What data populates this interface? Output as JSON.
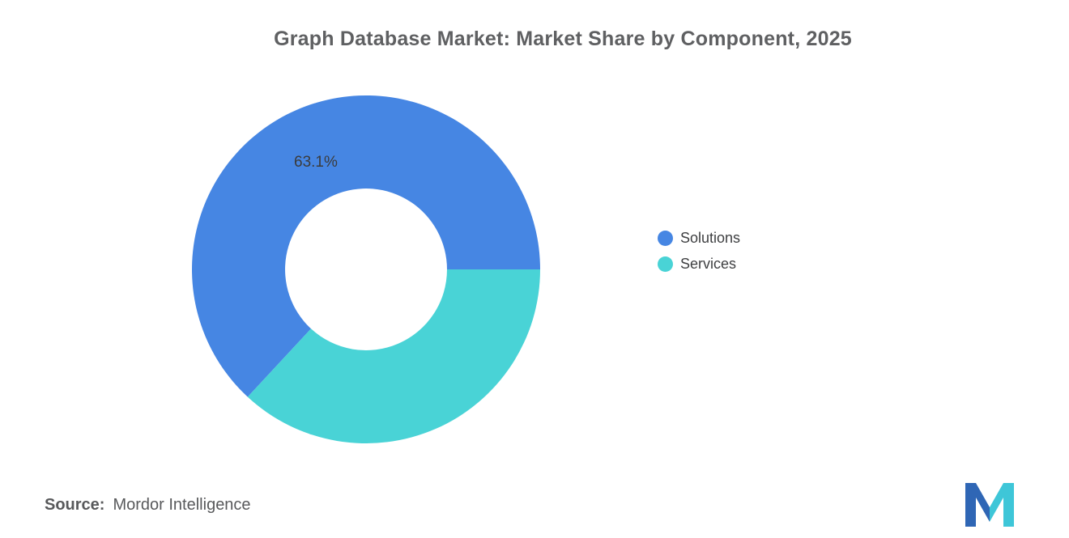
{
  "chart": {
    "title": "Graph Database Market: Market Share by Component, 2025"
  },
  "chart_data": {
    "type": "pie",
    "subtype": "donut",
    "title": "Graph Database Market: Market Share by Component, 2025",
    "series": [
      {
        "name": "Solutions",
        "value": 63.1,
        "color": "#4686E3"
      },
      {
        "name": "Services",
        "value": 36.9,
        "color": "#49D3D6"
      }
    ],
    "data_labels": [
      "63.1%"
    ],
    "inner_radius_ratio": 0.465,
    "start_angle_deg": 222.84,
    "legend_position": "right"
  },
  "source": {
    "prefix": "Source:",
    "text": "Mordor Intelligence"
  },
  "logo": {
    "name": "mordor-intelligence-logo",
    "blue": "#2F66B5",
    "teal": "#3EC6D8"
  }
}
